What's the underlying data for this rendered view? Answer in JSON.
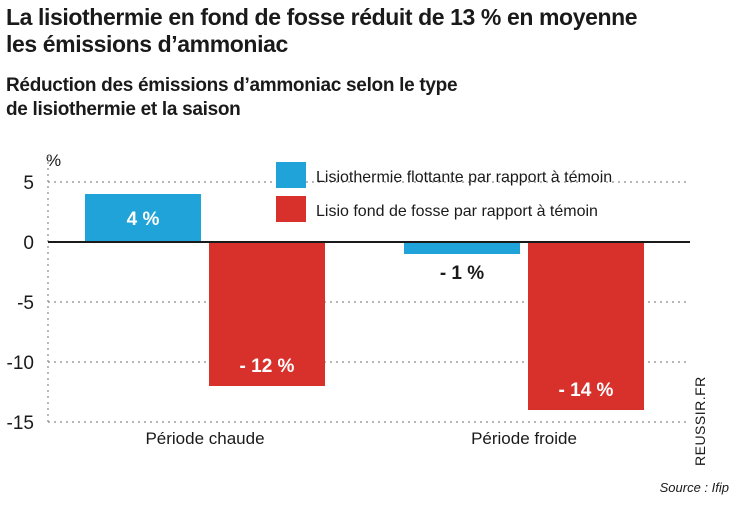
{
  "header": {
    "title_line1": "La lisiothermie en fond de fosse réduit de 13 % en moyenne",
    "title_line2": "les émissions d’ammoniac",
    "subtitle_line1": "Réduction des émissions d’ammoniac selon le type",
    "subtitle_line2": "de lisiothermie et la saison"
  },
  "footer": {
    "credit": "REUSSIR.FR",
    "source": "Source : Ifip"
  },
  "colors": {
    "series_flottante": "#1fa3d8",
    "series_fosse": "#d8302b",
    "grid": "#8a8a8a",
    "axis": "#1a1a1a"
  },
  "chart_data": {
    "type": "bar",
    "ylabel": "%",
    "ylim": [
      -15,
      5
    ],
    "yticks": [
      5,
      0,
      -5,
      -10,
      -15
    ],
    "grid": true,
    "legend_position": "top-right",
    "categories": [
      "Période chaude",
      "Période froide"
    ],
    "series": [
      {
        "name": "Lisiothermie flottante par rapport à témoin",
        "values": [
          4,
          -1
        ],
        "labels": [
          "4 %",
          "- 1 %"
        ]
      },
      {
        "name": "Lisio fond de fosse par rapport à témoin",
        "values": [
          -12,
          -14
        ],
        "labels": [
          "- 12 %",
          "- 14 %"
        ]
      }
    ]
  }
}
